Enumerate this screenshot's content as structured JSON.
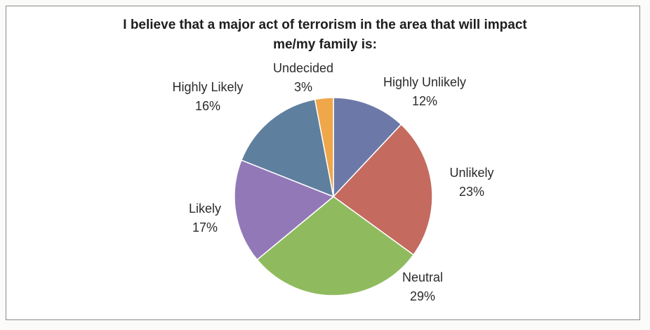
{
  "chart_data": {
    "type": "pie",
    "title_lines": [
      "I believe that a major act of terrorism in the area that will impact",
      "me/my family is:"
    ],
    "slices": [
      {
        "label": "Highly Unlikely",
        "value": 12,
        "value_label": "12%",
        "color": "#6c79a8"
      },
      {
        "label": "Unlikely",
        "value": 23,
        "value_label": "23%",
        "color": "#c46a5f"
      },
      {
        "label": "Neutral",
        "value": 29,
        "value_label": "29%",
        "color": "#8fbb5e"
      },
      {
        "label": "Likely",
        "value": 17,
        "value_label": "17%",
        "color": "#9378b8"
      },
      {
        "label": "Highly Likely",
        "value": 16,
        "value_label": "16%",
        "color": "#5f7f9e"
      },
      {
        "label": "Undecided",
        "value": 3,
        "value_label": "3%",
        "color": "#f0a74a"
      }
    ],
    "legend": "none"
  }
}
